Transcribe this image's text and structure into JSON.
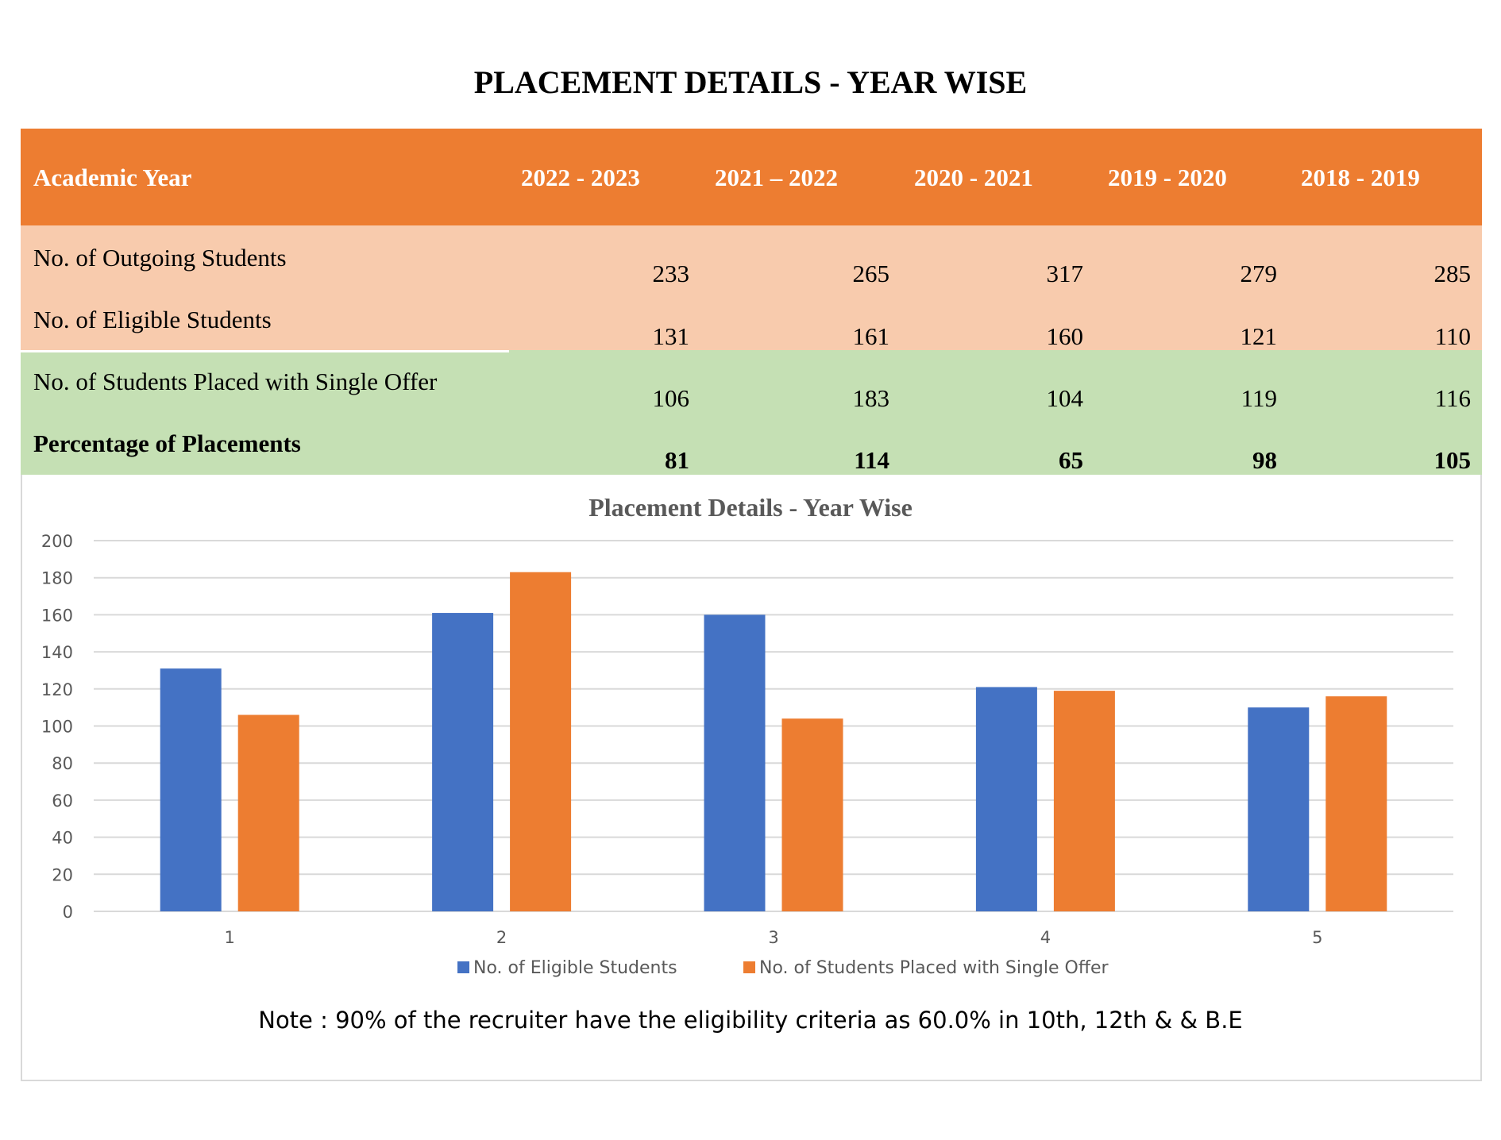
{
  "title": "PLACEMENT DETAILS - YEAR WISE",
  "table": {
    "header": {
      "label": "Academic Year",
      "years": [
        "2022 - 2023",
        "2021 – 2022",
        "2020 - 2021",
        "2019 - 2020",
        "2018 - 2019"
      ]
    },
    "rows": [
      {
        "label": "No. of Outgoing Students",
        "values": [
          "233",
          "265",
          "317",
          "279",
          "285"
        ]
      },
      {
        "label": "No. of Eligible Students",
        "values": [
          "131",
          "161",
          "160",
          "121",
          "110"
        ]
      },
      {
        "label": "No. of Students Placed with Single Offer",
        "values": [
          "106",
          "183",
          "104",
          "119",
          "116"
        ]
      },
      {
        "label": "Percentage of Placements",
        "values": [
          "81",
          "114",
          "65",
          "98",
          "105"
        ]
      }
    ]
  },
  "chart_data": {
    "type": "bar",
    "title": "Placement Details - Year Wise",
    "categories": [
      "1",
      "2",
      "3",
      "4",
      "5"
    ],
    "series": [
      {
        "name": "No. of Eligible Students",
        "color": "#4472c4",
        "values": [
          131,
          161,
          160,
          121,
          110
        ]
      },
      {
        "name": "No. of Students Placed with Single Offer",
        "color": "#ed7d31",
        "values": [
          106,
          183,
          104,
          119,
          116
        ]
      }
    ],
    "ylim": [
      0,
      200
    ],
    "yticks": [
      0,
      20,
      40,
      60,
      80,
      100,
      120,
      140,
      160,
      180,
      200
    ],
    "grid": true,
    "legend": "bottom"
  },
  "note": "Note : 90% of the recruiter have  the eligibility criteria as 60.0% in 10th, 12th & & B.E"
}
